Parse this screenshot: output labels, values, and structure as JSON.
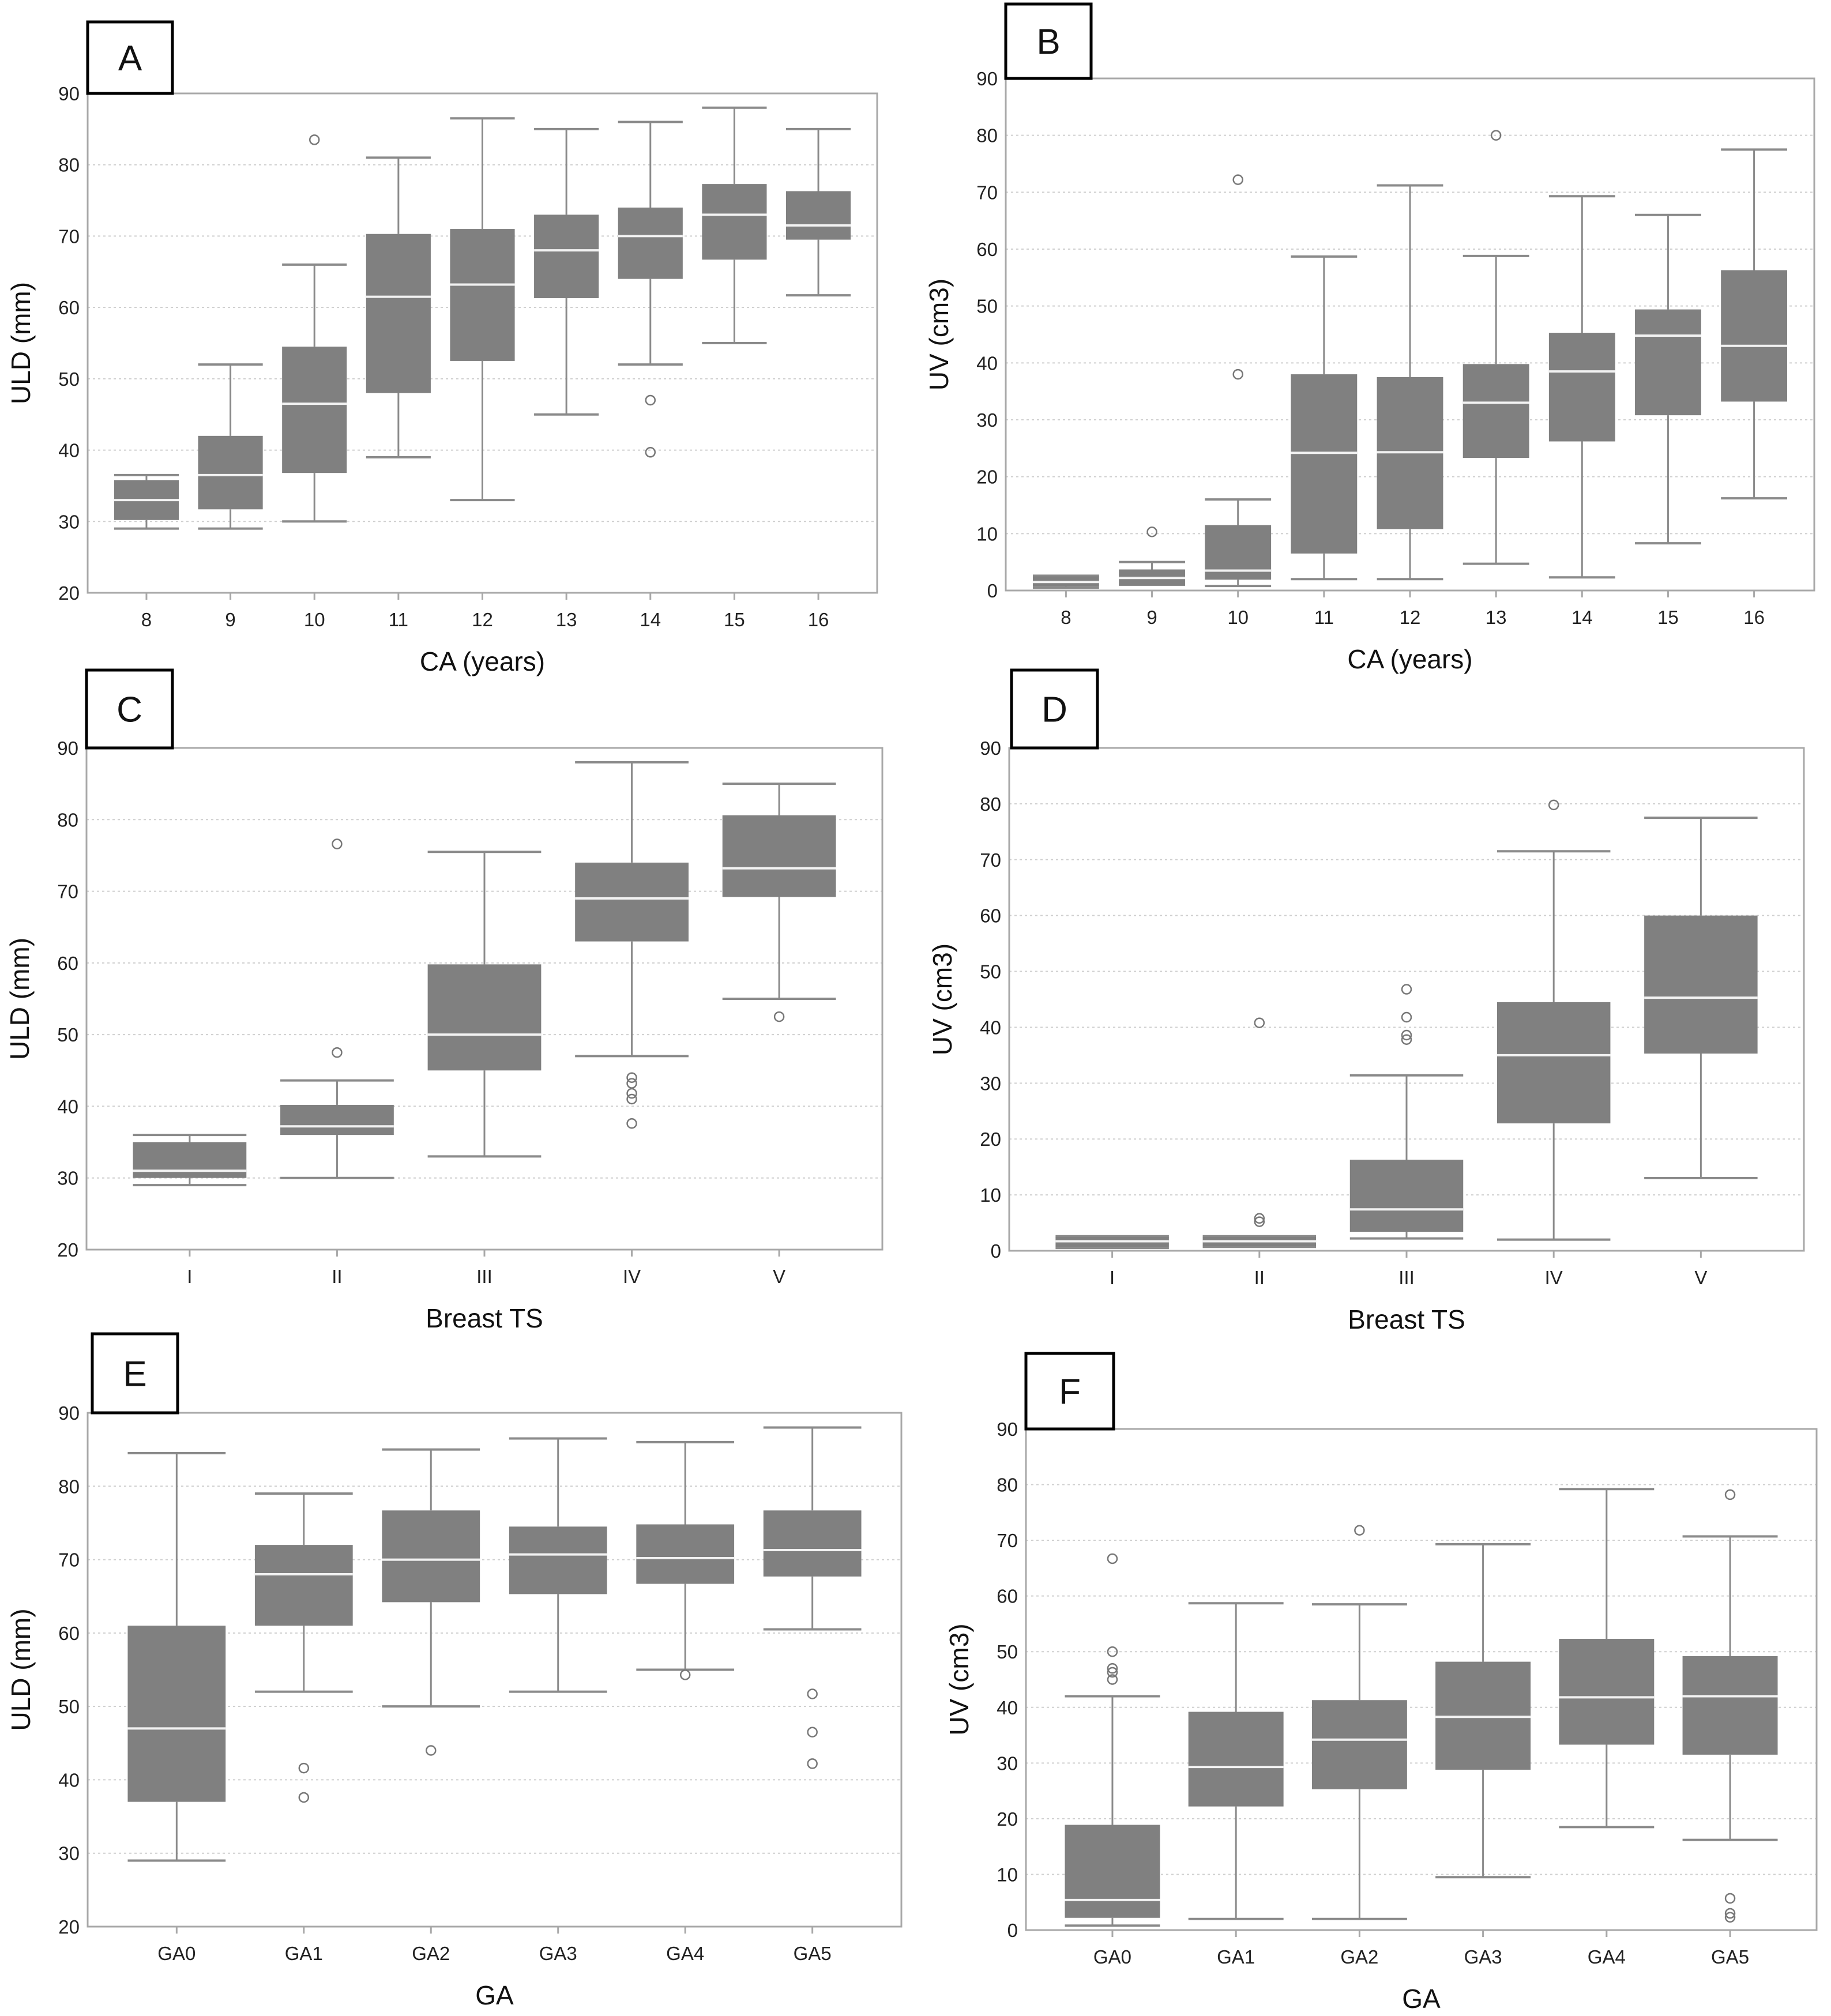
{
  "chart_data": [
    {
      "type": "box",
      "label": "A",
      "xlabel": "CA (years)",
      "ylabel": "ULD (mm)",
      "ylim": [
        20,
        90
      ],
      "yticks": [
        20,
        30,
        40,
        50,
        60,
        70,
        80,
        90
      ],
      "grid": "horizontal-dotted",
      "categories": [
        "8",
        "9",
        "10",
        "11",
        "12",
        "13",
        "14",
        "15",
        "16"
      ],
      "boxes": [
        {
          "lo": 29,
          "q1": 30.2,
          "med": 33,
          "q3": 35.8,
          "hi": 36.5,
          "outliers": []
        },
        {
          "lo": 29,
          "q1": 31.7,
          "med": 36.5,
          "q3": 42,
          "hi": 52,
          "outliers": []
        },
        {
          "lo": 30,
          "q1": 36.8,
          "med": 46.5,
          "q3": 54.5,
          "hi": 66,
          "outliers": [
            83.5
          ]
        },
        {
          "lo": 39,
          "q1": 48,
          "med": 61.5,
          "q3": 70.3,
          "hi": 81,
          "outliers": []
        },
        {
          "lo": 33,
          "q1": 52.5,
          "med": 63.2,
          "q3": 71,
          "hi": 86.5,
          "outliers": []
        },
        {
          "lo": 45,
          "q1": 61.3,
          "med": 68,
          "q3": 73,
          "hi": 85,
          "outliers": []
        },
        {
          "lo": 52,
          "q1": 64,
          "med": 70,
          "q3": 74,
          "hi": 86,
          "outliers": [
            47,
            39.7
          ]
        },
        {
          "lo": 55,
          "q1": 66.7,
          "med": 73,
          "q3": 77.3,
          "hi": 88,
          "outliers": []
        },
        {
          "lo": 61.7,
          "q1": 69.5,
          "med": 71.5,
          "q3": 76.3,
          "hi": 85,
          "outliers": []
        }
      ]
    },
    {
      "type": "box",
      "label": "B",
      "xlabel": "CA (years)",
      "ylabel": "UV (cm3)",
      "ylim": [
        0,
        90
      ],
      "yticks": [
        0,
        10,
        20,
        30,
        40,
        50,
        60,
        70,
        80,
        90
      ],
      "grid": "horizontal-dotted",
      "categories": [
        "8",
        "9",
        "10",
        "11",
        "12",
        "13",
        "14",
        "15",
        "16"
      ],
      "boxes": [
        {
          "lo": 0.5,
          "q1": 0.7,
          "med": 1.5,
          "q3": 2.5,
          "hi": 2.6,
          "outliers": []
        },
        {
          "lo": 1,
          "q1": 1,
          "med": 2.2,
          "q3": 3.7,
          "hi": 5,
          "outliers": [
            10.3
          ]
        },
        {
          "lo": 0.8,
          "q1": 1.9,
          "med": 3.5,
          "q3": 11.5,
          "hi": 16,
          "outliers": [
            72.2,
            38
          ]
        },
        {
          "lo": 2,
          "q1": 6.5,
          "med": 24.2,
          "q3": 38,
          "hi": 58.7,
          "outliers": []
        },
        {
          "lo": 2,
          "q1": 10.8,
          "med": 24.3,
          "q3": 37.5,
          "hi": 71.2,
          "outliers": []
        },
        {
          "lo": 4.7,
          "q1": 23.3,
          "med": 33,
          "q3": 39.8,
          "hi": 58.8,
          "outliers": [
            80
          ]
        },
        {
          "lo": 2.3,
          "q1": 26.2,
          "med": 38.5,
          "q3": 45.3,
          "hi": 69.3,
          "outliers": []
        },
        {
          "lo": 8.3,
          "q1": 30.8,
          "med": 44.8,
          "q3": 49.4,
          "hi": 66,
          "outliers": []
        },
        {
          "lo": 16.2,
          "q1": 33.2,
          "med": 43,
          "q3": 56.3,
          "hi": 77.5,
          "outliers": []
        }
      ]
    },
    {
      "type": "box",
      "label": "C",
      "xlabel": "Breast TS",
      "ylabel": "ULD (mm)",
      "ylim": [
        20,
        90
      ],
      "yticks": [
        20,
        30,
        40,
        50,
        60,
        70,
        80,
        90
      ],
      "grid": "horizontal-dotted",
      "categories": [
        "I",
        "II",
        "III",
        "IV",
        "V"
      ],
      "boxes": [
        {
          "lo": 29,
          "q1": 30,
          "med": 31,
          "q3": 35,
          "hi": 36,
          "outliers": []
        },
        {
          "lo": 30,
          "q1": 36,
          "med": 37.2,
          "q3": 40.2,
          "hi": 43.6,
          "outliers": [
            76.6,
            47.5
          ]
        },
        {
          "lo": 33,
          "q1": 45,
          "med": 50,
          "q3": 59.8,
          "hi": 75.5,
          "outliers": []
        },
        {
          "lo": 47,
          "q1": 63,
          "med": 69,
          "q3": 74,
          "hi": 88,
          "outliers": [
            44,
            43.2,
            41.8,
            41,
            37.6
          ]
        },
        {
          "lo": 55,
          "q1": 69.2,
          "med": 73.2,
          "q3": 80.6,
          "hi": 85,
          "outliers": [
            52.5
          ]
        }
      ]
    },
    {
      "type": "box",
      "label": "D",
      "xlabel": "Breast TS",
      "ylabel": "UV (cm3)",
      "ylim": [
        0,
        90
      ],
      "yticks": [
        0,
        10,
        20,
        30,
        40,
        50,
        60,
        70,
        80,
        90
      ],
      "grid": "horizontal-dotted",
      "categories": [
        "I",
        "II",
        "III",
        "IV",
        "V"
      ],
      "boxes": [
        {
          "lo": 0.5,
          "q1": 0.7,
          "med": 1.7,
          "q3": 2.5,
          "hi": 2.6,
          "outliers": []
        },
        {
          "lo": 0.7,
          "q1": 0.8,
          "med": 1.7,
          "q3": 2.5,
          "hi": 2.6,
          "outliers": [
            40.8,
            5.8,
            5.2
          ]
        },
        {
          "lo": 2.2,
          "q1": 3.4,
          "med": 7.4,
          "q3": 16.3,
          "hi": 31.4,
          "outliers": [
            46.8,
            41.8,
            38.6,
            37.8
          ]
        },
        {
          "lo": 2,
          "q1": 22.8,
          "med": 35,
          "q3": 44.5,
          "hi": 71.5,
          "outliers": [
            79.8
          ]
        },
        {
          "lo": 13,
          "q1": 35.3,
          "med": 45.3,
          "q3": 60,
          "hi": 77.5,
          "outliers": []
        }
      ]
    },
    {
      "type": "box",
      "label": "E",
      "xlabel": "GA",
      "ylabel": "ULD (mm)",
      "ylim": [
        20,
        90
      ],
      "yticks": [
        20,
        30,
        40,
        50,
        60,
        70,
        80,
        90
      ],
      "grid": "horizontal-dotted",
      "categories": [
        "GA0",
        "GA1",
        "GA2",
        "GA3",
        "GA4",
        "GA5"
      ],
      "boxes": [
        {
          "lo": 29,
          "q1": 37,
          "med": 47,
          "q3": 61,
          "hi": 84.5,
          "outliers": []
        },
        {
          "lo": 52,
          "q1": 61,
          "med": 68,
          "q3": 72,
          "hi": 79,
          "outliers": [
            41.6,
            37.6
          ]
        },
        {
          "lo": 50,
          "q1": 64.2,
          "med": 70,
          "q3": 76.7,
          "hi": 85,
          "outliers": [
            44
          ]
        },
        {
          "lo": 52,
          "q1": 65.3,
          "med": 70.7,
          "q3": 74.5,
          "hi": 86.5,
          "outliers": []
        },
        {
          "lo": 55,
          "q1": 66.7,
          "med": 70.2,
          "q3": 74.8,
          "hi": 86,
          "outliers": [
            54.3
          ]
        },
        {
          "lo": 60.5,
          "q1": 67.7,
          "med": 71.3,
          "q3": 76.7,
          "hi": 88,
          "outliers": [
            51.7,
            46.5,
            42.2
          ]
        }
      ]
    },
    {
      "type": "box",
      "label": "F",
      "xlabel": "GA",
      "ylabel": "UV (cm3)",
      "ylim": [
        0,
        90
      ],
      "yticks": [
        0,
        10,
        20,
        30,
        40,
        50,
        60,
        70,
        80,
        90
      ],
      "grid": "horizontal-dotted",
      "categories": [
        "GA0",
        "GA1",
        "GA2",
        "GA3",
        "GA4",
        "GA5"
      ],
      "boxes": [
        {
          "lo": 0.8,
          "q1": 2.2,
          "med": 5.4,
          "q3": 18.9,
          "hi": 42,
          "outliers": [
            66.7,
            50,
            47,
            46.3,
            45
          ]
        },
        {
          "lo": 2,
          "q1": 22.2,
          "med": 29.3,
          "q3": 39.2,
          "hi": 58.7,
          "outliers": []
        },
        {
          "lo": 2,
          "q1": 25.3,
          "med": 34.2,
          "q3": 41.3,
          "hi": 58.5,
          "outliers": [
            71.8
          ]
        },
        {
          "lo": 9.5,
          "q1": 28.8,
          "med": 38.3,
          "q3": 48.2,
          "hi": 69.3,
          "outliers": []
        },
        {
          "lo": 18.5,
          "q1": 33.3,
          "med": 41.8,
          "q3": 52.3,
          "hi": 79.2,
          "outliers": []
        },
        {
          "lo": 16.2,
          "q1": 31.5,
          "med": 42,
          "q3": 49.2,
          "hi": 70.7,
          "outliers": [
            78.2,
            5.7,
            3,
            2.3
          ]
        }
      ]
    }
  ],
  "colors": {
    "box": "#808080",
    "median": "#f2f2f2",
    "whisker": "#8a8a8a",
    "grid": "#cfcfcf",
    "frame": "#a8a8a8"
  }
}
